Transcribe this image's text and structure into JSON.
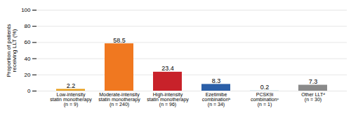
{
  "chart_data": {
    "type": "bar",
    "categories": [
      "Low-intensity\nstatin monotherapy\n(n = 9)",
      "Moderate-intensity\nstatin monotherapy\n(n = 240)",
      "High-intensity\nstatin monotherapy\n(n = 96)",
      "Ezetimibe\ncombinationᵇ\n(n = 34)",
      "PCSK9i\ncombinationᶜ\n(n = 1)",
      "Other LLTᵈ\n(n = 30)"
    ],
    "values": [
      2.2,
      58.5,
      23.4,
      8.3,
      0.2,
      7.3
    ],
    "colors": [
      "#E8A020",
      "#F07820",
      "#C8222A",
      "#2B5FA8",
      "#7BB8D4",
      "#8A8A8A"
    ],
    "ylabel": "Proportion of patients\nreceiving LLT (%)",
    "ylim": [
      0,
      100
    ],
    "yticks": [
      0,
      20,
      40,
      60,
      80,
      100
    ],
    "grid": true,
    "data_labels": true
  }
}
